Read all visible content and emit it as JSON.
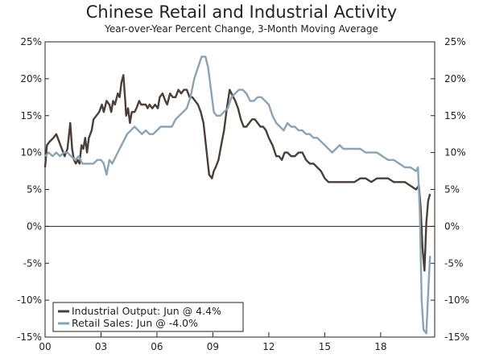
{
  "chart_data": {
    "type": "line",
    "title": "Chinese Retail and Industrial Activity",
    "subtitle": "Year-over-Year Percent Change, 3-Month Moving Average",
    "ylim": [
      -15,
      25
    ],
    "xlim": [
      2000.0,
      2020.9
    ],
    "y_ticks": [
      25,
      20,
      15,
      10,
      5,
      0,
      -5,
      -10,
      -15
    ],
    "y_tick_labels_left": [
      "25%",
      "20%",
      "15%",
      "10%",
      "5%",
      "0%",
      "-5%",
      "-10%",
      "-15%"
    ],
    "y_tick_labels_right": [
      "25%",
      "20%",
      "15%",
      "10%",
      "5%",
      "0%",
      "-5%",
      "-10%",
      "-15%"
    ],
    "x_ticks": [
      2000,
      2003,
      2006,
      2009,
      2012,
      2015,
      2018
    ],
    "x_tick_labels": [
      "00",
      "03",
      "06",
      "09",
      "12",
      "15",
      "18"
    ],
    "grid": false,
    "zero_line": true,
    "legend_position": "bottom-left",
    "series": [
      {
        "name": "Industrial Output: Jun @ 4.4%",
        "color": "#4a3f37",
        "x": [
          2000.0,
          2000.1,
          2000.25,
          2000.45,
          2000.6,
          2000.75,
          2000.9,
          2001.05,
          2001.2,
          2001.35,
          2001.45,
          2001.55,
          2001.65,
          2001.75,
          2001.85,
          2001.95,
          2002.05,
          2002.15,
          2002.25,
          2002.35,
          2002.5,
          2002.6,
          2002.75,
          2002.9,
          2003.05,
          2003.15,
          2003.3,
          2003.45,
          2003.55,
          2003.65,
          2003.75,
          2003.9,
          2004.0,
          2004.1,
          2004.2,
          2004.3,
          2004.35,
          2004.45,
          2004.55,
          2004.65,
          2004.8,
          2004.9,
          2005.05,
          2005.15,
          2005.3,
          2005.4,
          2005.5,
          2005.6,
          2005.75,
          2005.9,
          2006.05,
          2006.15,
          2006.3,
          2006.45,
          2006.55,
          2006.7,
          2006.85,
          2007.0,
          2007.15,
          2007.3,
          2007.45,
          2007.6,
          2007.75,
          2007.9,
          2008.05,
          2008.2,
          2008.35,
          2008.5,
          2008.65,
          2008.8,
          2008.95,
          2009.05,
          2009.15,
          2009.3,
          2009.45,
          2009.6,
          2009.75,
          2009.9,
          2010.0,
          2010.1,
          2010.2,
          2010.35,
          2010.5,
          2010.65,
          2010.8,
          2010.95,
          2011.1,
          2011.25,
          2011.4,
          2011.55,
          2011.7,
          2011.85,
          2012.0,
          2012.2,
          2012.4,
          2012.55,
          2012.7,
          2012.85,
          2013.0,
          2013.2,
          2013.4,
          2013.6,
          2013.8,
          2014.0,
          2014.2,
          2014.4,
          2014.6,
          2014.8,
          2015.0,
          2015.2,
          2015.4,
          2015.6,
          2015.8,
          2016.0,
          2016.3,
          2016.6,
          2016.9,
          2017.2,
          2017.5,
          2017.8,
          2018.1,
          2018.4,
          2018.7,
          2019.0,
          2019.3,
          2019.6,
          2019.9,
          2020.05,
          2020.15,
          2020.25,
          2020.35,
          2020.45,
          2020.55,
          2020.65
        ],
        "values": [
          8.0,
          11.0,
          11.5,
          12.0,
          12.5,
          11.5,
          10.5,
          9.5,
          10.5,
          14.0,
          10.5,
          9.0,
          8.5,
          9.0,
          8.5,
          11.0,
          10.5,
          12.0,
          10.0,
          12.0,
          13.0,
          14.5,
          15.0,
          15.5,
          16.5,
          15.5,
          17.0,
          16.5,
          15.5,
          17.0,
          16.5,
          18.0,
          17.5,
          19.5,
          20.5,
          17.0,
          15.0,
          16.0,
          14.0,
          15.5,
          15.5,
          16.0,
          17.0,
          16.5,
          16.5,
          16.5,
          16.0,
          16.5,
          16.0,
          16.5,
          16.0,
          17.5,
          18.0,
          17.0,
          16.5,
          18.0,
          17.5,
          17.5,
          18.5,
          18.0,
          18.5,
          18.5,
          17.5,
          17.5,
          17.0,
          16.5,
          15.5,
          14.0,
          10.5,
          7.0,
          6.5,
          7.5,
          8.0,
          9.0,
          11.0,
          13.0,
          16.0,
          18.5,
          18.0,
          17.5,
          17.0,
          16.0,
          14.5,
          13.5,
          13.5,
          14.0,
          14.5,
          14.5,
          14.0,
          13.5,
          13.5,
          13.0,
          12.0,
          11.0,
          9.5,
          9.5,
          9.0,
          10.0,
          10.0,
          9.5,
          9.5,
          10.0,
          10.0,
          9.0,
          8.5,
          8.5,
          8.0,
          7.5,
          6.5,
          6.0,
          6.0,
          6.0,
          6.0,
          6.0,
          6.0,
          6.0,
          6.5,
          6.5,
          6.0,
          6.5,
          6.5,
          6.5,
          6.0,
          6.0,
          6.0,
          5.5,
          5.0,
          5.5,
          2.5,
          -3.0,
          -6.0,
          0.5,
          3.5,
          4.4
        ]
      },
      {
        "name": "Retail Sales: Jun @ -4.0%",
        "color": "#8aa3b5",
        "x": [
          2000.0,
          2000.2,
          2000.4,
          2000.6,
          2000.8,
          2001.0,
          2001.2,
          2001.4,
          2001.6,
          2001.8,
          2002.0,
          2002.2,
          2002.4,
          2002.6,
          2002.8,
          2003.0,
          2003.15,
          2003.3,
          2003.45,
          2003.6,
          2003.8,
          2004.0,
          2004.2,
          2004.4,
          2004.6,
          2004.8,
          2005.0,
          2005.2,
          2005.4,
          2005.6,
          2005.8,
          2006.0,
          2006.2,
          2006.4,
          2006.6,
          2006.8,
          2007.0,
          2007.2,
          2007.4,
          2007.6,
          2007.8,
          2008.0,
          2008.2,
          2008.4,
          2008.6,
          2008.75,
          2008.9,
          2009.05,
          2009.2,
          2009.4,
          2009.6,
          2009.8,
          2010.0,
          2010.2,
          2010.4,
          2010.6,
          2010.8,
          2011.0,
          2011.2,
          2011.4,
          2011.6,
          2011.8,
          2012.0,
          2012.2,
          2012.4,
          2012.6,
          2012.8,
          2013.0,
          2013.2,
          2013.4,
          2013.6,
          2013.8,
          2014.0,
          2014.2,
          2014.4,
          2014.6,
          2014.8,
          2015.0,
          2015.2,
          2015.4,
          2015.6,
          2015.8,
          2016.0,
          2016.3,
          2016.6,
          2016.9,
          2017.2,
          2017.5,
          2017.8,
          2018.1,
          2018.4,
          2018.7,
          2019.0,
          2019.3,
          2019.6,
          2019.9,
          2020.0,
          2020.1,
          2020.2,
          2020.3,
          2020.45,
          2020.55,
          2020.65
        ],
        "values": [
          9.5,
          10.0,
          9.5,
          10.0,
          9.5,
          10.0,
          10.0,
          9.5,
          9.0,
          9.5,
          8.5,
          8.5,
          8.5,
          8.5,
          9.0,
          9.0,
          8.5,
          7.0,
          9.0,
          8.5,
          9.5,
          10.5,
          11.5,
          12.5,
          13.0,
          13.5,
          13.0,
          12.5,
          13.0,
          12.5,
          12.5,
          13.0,
          13.5,
          13.5,
          13.5,
          13.5,
          14.5,
          15.0,
          15.5,
          16.0,
          17.5,
          20.0,
          21.5,
          23.0,
          23.0,
          21.5,
          18.5,
          15.5,
          15.0,
          15.0,
          15.5,
          16.0,
          17.5,
          18.0,
          18.5,
          18.5,
          18.0,
          17.0,
          17.0,
          17.5,
          17.5,
          17.0,
          16.5,
          15.0,
          14.0,
          13.5,
          13.0,
          14.0,
          13.5,
          13.5,
          13.0,
          13.0,
          12.5,
          12.5,
          12.0,
          12.0,
          11.5,
          11.0,
          10.5,
          10.0,
          10.5,
          11.0,
          10.5,
          10.5,
          10.5,
          10.5,
          10.0,
          10.0,
          10.0,
          9.5,
          9.0,
          9.0,
          8.5,
          8.0,
          8.0,
          7.5,
          8.0,
          2.0,
          -10.0,
          -14.0,
          -14.5,
          -9.0,
          -4.0
        ]
      }
    ]
  }
}
